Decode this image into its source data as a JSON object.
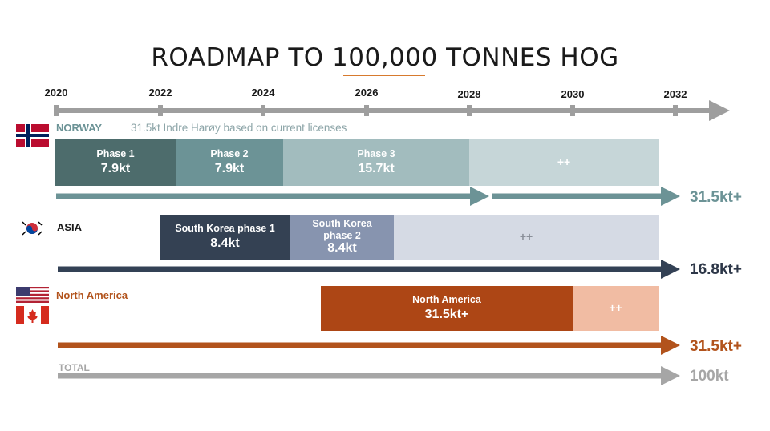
{
  "title": "ROADMAP TO 100,000 TONNES HOG",
  "timeline": {
    "years": [
      "2020",
      "2022",
      "2024",
      "2026",
      "2028",
      "2030",
      "2032"
    ]
  },
  "norway": {
    "label": "NORWAY",
    "note": "31.5kt Indre Harøy based on current licenses",
    "phase1": {
      "label": "Phase 1",
      "value": "7.9kt"
    },
    "phase2": {
      "label": "Phase 2",
      "value": "7.9kt"
    },
    "phase3": {
      "label": "Phase 3",
      "value": "15.7kt"
    },
    "future": "++",
    "total": "31.5kt+"
  },
  "asia": {
    "label": "ASIA",
    "phase1": {
      "label": "South Korea phase 1",
      "value": "8.4kt"
    },
    "phase2": {
      "label_line1": "South Korea",
      "label_line2": "phase 2",
      "value": "8.4kt"
    },
    "future": "++",
    "total": "16.8kt+"
  },
  "north_america": {
    "label": "North America",
    "bar": {
      "label": "North America",
      "value": "31.5kt+"
    },
    "future": "++",
    "total": "31.5kt+"
  },
  "total_row": {
    "label": "TOTAL",
    "value": "100kt"
  },
  "colors": {
    "norway_phase1": "#4d6c6c",
    "norway_phase2": "#6c9396",
    "norway_phase3": "#a2bcbe",
    "norway_future": "#c6d6d8",
    "norway_arrow": "#6c9396",
    "asia_phase1": "#344153",
    "asia_phase2": "#8794af",
    "asia_future": "#d5dae4",
    "asia_arrow": "#334155",
    "na_bar": "#ad4615",
    "na_future": "#f1bca3",
    "na_arrow": "#b2531c",
    "total_arrow": "#a6a6a6",
    "timeline": "#9e9e9e",
    "title_underline": "#d77a2e"
  }
}
